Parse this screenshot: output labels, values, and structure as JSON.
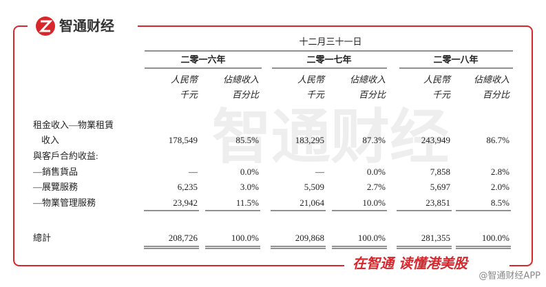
{
  "brand": {
    "name": "智通财经",
    "watermark": "智通财经"
  },
  "table": {
    "period": "十二月三十一日",
    "columns": [
      {
        "year": "二零一六年",
        "headers": [
          [
            "人民幣",
            "千元"
          ],
          [
            "佔總收入",
            "百分比"
          ]
        ]
      },
      {
        "year": "二零一七年",
        "headers": [
          [
            "人民幣",
            "千元"
          ],
          [
            "佔總收入",
            "百分比"
          ]
        ]
      },
      {
        "year": "二零一八年",
        "headers": [
          [
            "人民幣",
            "千元"
          ],
          [
            "佔總收入",
            "百分比"
          ]
        ]
      }
    ],
    "rows": [
      {
        "label": [
          "租金收入—物業租賃",
          "收入"
        ],
        "cells": [
          "178,549",
          "85.5%",
          "183,295",
          "87.3%",
          "243,949",
          "86.7%"
        ]
      },
      {
        "label": [
          "與客戶合約收益:"
        ],
        "cells": []
      },
      {
        "label": [
          "—銷售貨品"
        ],
        "cells": [
          "—",
          "0.0%",
          "—",
          "0.0%",
          "7,858",
          "2.8%"
        ]
      },
      {
        "label": [
          "—展覽服務"
        ],
        "cells": [
          "6,235",
          "3.0%",
          "5,509",
          "2.7%",
          "5,697",
          "2.0%"
        ]
      },
      {
        "label": [
          "—物業管理服務"
        ],
        "cells": [
          "23,942",
          "11.5%",
          "21,064",
          "10.0%",
          "23,851",
          "8.5%"
        ]
      },
      {
        "label": [
          "總計"
        ],
        "cells": [
          "208,726",
          "100.0%",
          "209,868",
          "100.0%",
          "281,355",
          "100.0%"
        ]
      }
    ]
  },
  "footer": {
    "slogan": "在智通 读懂港美股",
    "handle": "@智通财经APP"
  }
}
